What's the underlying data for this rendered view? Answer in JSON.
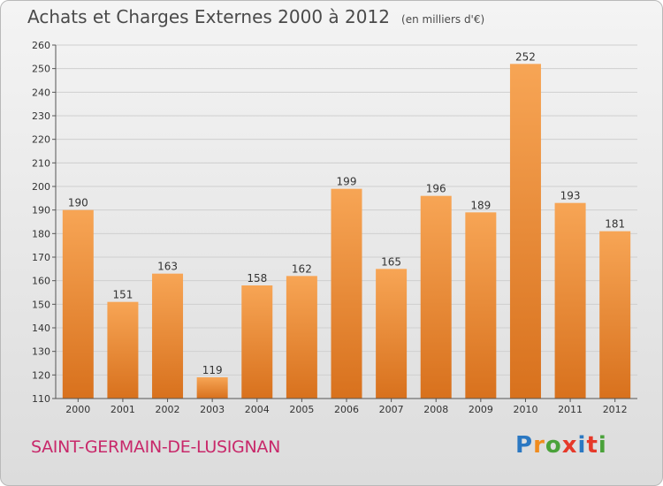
{
  "title": "Achats et Charges Externes 2000 à 2012",
  "unit_note": "(en milliers d'€)",
  "commune": "SAINT-GERMAIN-DE-LUSIGNAN",
  "logo": {
    "letters": [
      "P",
      "r",
      "o",
      "x",
      "i",
      "t",
      "i"
    ],
    "colors": [
      "#2b78c2",
      "#f08c1e",
      "#4aa23a",
      "#e6392a",
      "#2b78c2",
      "#e6392a",
      "#4aa23a"
    ]
  },
  "colors": {
    "bar_top": "#f7a555",
    "bar_bottom": "#d8711d",
    "text": "#4a4a4a",
    "commune": "#c8286a"
  },
  "chart_data": {
    "type": "bar",
    "categories": [
      "2000",
      "2001",
      "2002",
      "2003",
      "2004",
      "2005",
      "2006",
      "2007",
      "2008",
      "2009",
      "2010",
      "2011",
      "2012"
    ],
    "values": [
      190,
      151,
      163,
      119,
      158,
      162,
      199,
      165,
      196,
      189,
      252,
      193,
      181
    ],
    "ylim": [
      110,
      260
    ],
    "yticks": [
      110,
      120,
      130,
      140,
      150,
      160,
      170,
      180,
      190,
      200,
      210,
      220,
      230,
      240,
      250,
      260
    ],
    "grid": true
  }
}
